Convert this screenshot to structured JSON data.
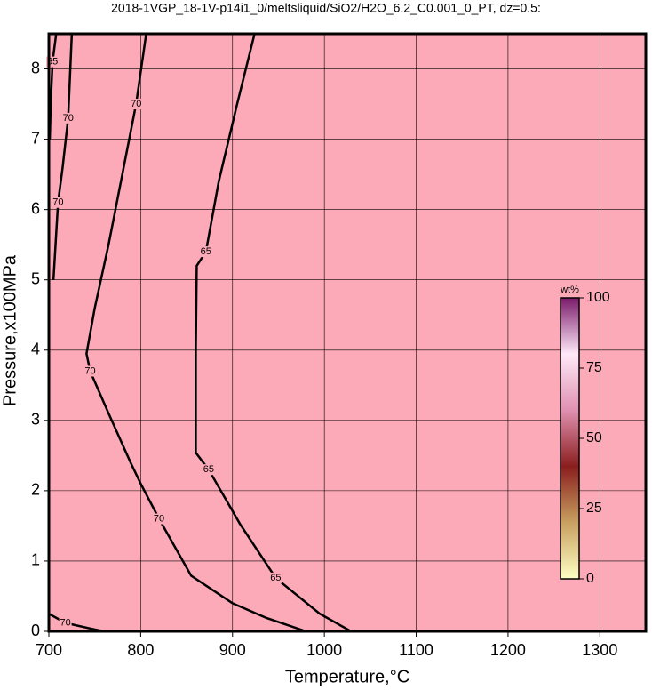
{
  "chart_data": {
    "type": "contour",
    "title": "2018-1VGP_18-1V-p14i1_0/meltsliquid/SiO2/H2O_6.2_C0.001_0_PT, dz=0.5:",
    "x_label": "Temperature,°C",
    "y_label": "Pressure,x100MPa",
    "xlim": [
      700,
      1350
    ],
    "ylim": [
      0,
      8.5
    ],
    "xticks": [
      700,
      800,
      900,
      1000,
      1100,
      1200,
      1300
    ],
    "yticks": [
      0,
      1,
      2,
      3,
      4,
      5,
      6,
      7,
      8
    ],
    "grid": true,
    "fill_color": "#fdaab8",
    "contours": [
      {
        "level": 70,
        "x": [
          806,
          795,
          780,
          765,
          750,
          741,
          745,
          765,
          789,
          800,
          820,
          855,
          900,
          937,
          980
        ],
        "y": [
          8.5,
          7.5,
          6.5,
          5.5,
          4.6,
          3.95,
          3.7,
          3.1,
          2.4,
          2.1,
          1.6,
          0.79,
          0.4,
          0.19,
          0
        ]
      },
      {
        "level": 65,
        "x": [
          924,
          905,
          885,
          871,
          861,
          860,
          860,
          874,
          908,
          947,
          995,
          1029
        ],
        "y": [
          8.5,
          7.5,
          6.4,
          5.4,
          5.2,
          4.0,
          2.54,
          2.3,
          1.53,
          0.76,
          0.25,
          0
        ]
      },
      {
        "level": 70,
        "x": [
          725,
          721,
          715,
          710,
          705
        ],
        "y": [
          8.5,
          7.3,
          6.6,
          6.1,
          5.0
        ]
      },
      {
        "level": 65,
        "x": [
          708,
          704,
          702,
          701
        ],
        "y": [
          8.5,
          8.1,
          7.5,
          7.0
        ]
      },
      {
        "level": 70,
        "x": [
          700,
          718,
          745,
          760
        ],
        "y": [
          0.25,
          0.12,
          0.04,
          0
        ]
      }
    ],
    "colorbar": {
      "label": "wt%",
      "clim": [
        0,
        100
      ],
      "ticks": [
        0,
        25,
        50,
        75,
        100
      ],
      "colors": [
        "#ffffc4",
        "#c8a060",
        "#8a1e1e",
        "#e090b0",
        "#ffe8f8",
        "#7a1a6a"
      ]
    }
  }
}
